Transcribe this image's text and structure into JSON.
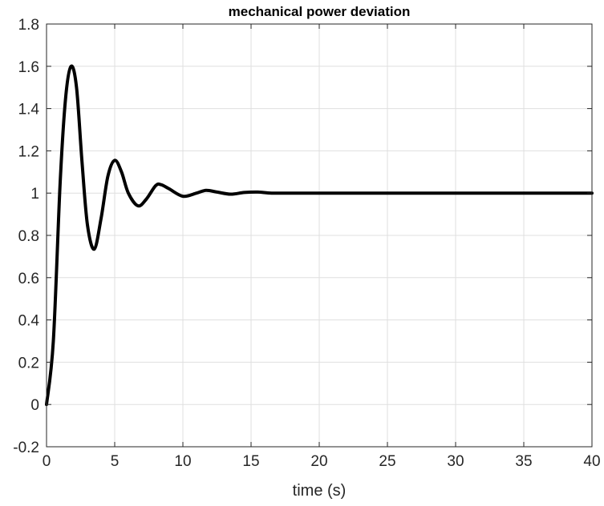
{
  "chart_data": {
    "type": "line",
    "title": "mechanical power deviation",
    "xlabel": "time (s)",
    "ylabel": "",
    "xlim": [
      0,
      40
    ],
    "ylim": [
      -0.2,
      1.8
    ],
    "xticks": [
      0,
      5,
      10,
      15,
      20,
      25,
      30,
      35,
      40
    ],
    "yticks": [
      -0.2,
      0,
      0.2,
      0.4,
      0.6,
      0.8,
      1,
      1.2,
      1.4,
      1.6,
      1.8
    ],
    "xtick_labels": [
      "0",
      "5",
      "10",
      "15",
      "20",
      "25",
      "30",
      "35",
      "40"
    ],
    "ytick_labels": [
      "-0.2",
      "0",
      "0.2",
      "0.4",
      "0.6",
      "0.8",
      "1",
      "1.2",
      "1.4",
      "1.6",
      "1.8"
    ],
    "grid": true,
    "series": [
      {
        "color": "#000000",
        "x": [
          0,
          0.5,
          1.0,
          1.4,
          1.8,
          2.2,
          2.6,
          3.0,
          3.5,
          4.0,
          4.5,
          5.0,
          5.5,
          6.0,
          6.7,
          7.3,
          8.0,
          8.4,
          9.0,
          10.0,
          11.0,
          11.7,
          12.5,
          13.5,
          14.5,
          15.5,
          16.5,
          18.0,
          20.0,
          25.0,
          30.0,
          35.0,
          40.0
        ],
        "values": [
          0,
          0.3,
          1.05,
          1.45,
          1.6,
          1.5,
          1.15,
          0.85,
          0.735,
          0.88,
          1.08,
          1.155,
          1.1,
          1.0,
          0.94,
          0.97,
          1.035,
          1.04,
          1.02,
          0.985,
          1.0,
          1.013,
          1.005,
          0.995,
          1.003,
          1.005,
          1.0,
          1.0,
          1.0,
          1.0,
          1.0,
          1.0,
          1.0
        ]
      }
    ]
  }
}
